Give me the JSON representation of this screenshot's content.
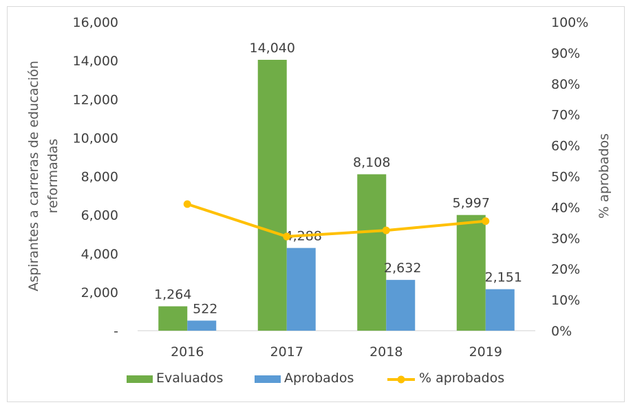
{
  "chart_data": {
    "type": "bar",
    "categories": [
      "2016",
      "2017",
      "2018",
      "2019"
    ],
    "series": [
      {
        "name": "Evaluados",
        "kind": "bar",
        "axis": "left",
        "color": "#70ad47",
        "values": [
          1264,
          14040,
          8108,
          5997
        ],
        "labels": [
          "1,264",
          "14,040",
          "8,108",
          "5,997"
        ]
      },
      {
        "name": "Aprobados",
        "kind": "bar",
        "axis": "left",
        "color": "#5b9bd5",
        "values": [
          522,
          4288,
          2632,
          2151
        ],
        "labels": [
          "522",
          "4,288",
          "2,632",
          "2,151"
        ]
      },
      {
        "name": "% aprobados",
        "kind": "line",
        "axis": "right",
        "color": "#ffc000",
        "values": [
          0.41,
          0.305,
          0.325,
          0.355
        ]
      }
    ],
    "left_axis": {
      "label": "Aspirantes a carreras de educación reformadas",
      "label_lines": [
        "Aspirantes a carreras de educación",
        "reformadas"
      ],
      "ylim": [
        0,
        16000
      ],
      "ticks": [
        "-",
        "2,000",
        "4,000",
        "6,000",
        "8,000",
        "10,000",
        "12,000",
        "14,000",
        "16,000"
      ]
    },
    "right_axis": {
      "label": "% aprobados",
      "ylim": [
        0,
        1
      ],
      "ticks": [
        "0%",
        "10%",
        "20%",
        "30%",
        "40%",
        "50%",
        "60%",
        "70%",
        "80%",
        "90%",
        "100%"
      ]
    },
    "grid": false,
    "legend_position": "bottom"
  }
}
